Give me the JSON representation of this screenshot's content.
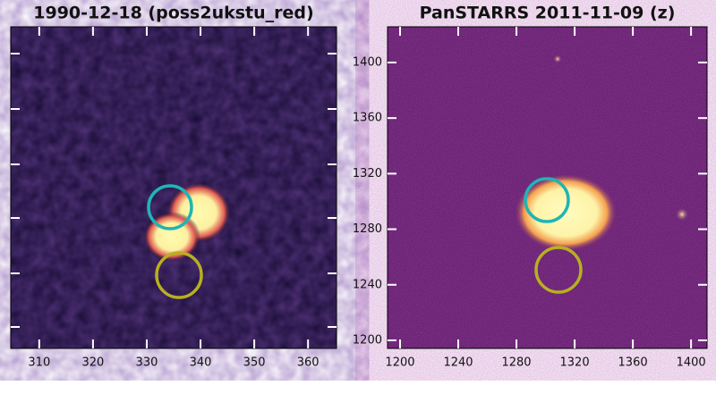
{
  "chart_data": [
    {
      "type": "image",
      "title": "1990-12-18 (poss2ukstu_red)",
      "xlim": [
        304.7,
        365.3
      ],
      "xticks": [
        310,
        320,
        330,
        340,
        350,
        360
      ]
    },
    {
      "type": "image",
      "title": "PanSTARRS 2011-11-09 (z)",
      "xlim": [
        1191.4,
        1411
      ],
      "xticks": [
        1200,
        1240,
        1280,
        1320,
        1360,
        1400
      ],
      "ylim": [
        1194.2,
        1425.7
      ],
      "yticks": [
        1200,
        1240,
        1280,
        1320,
        1360,
        1400
      ]
    }
  ]
}
